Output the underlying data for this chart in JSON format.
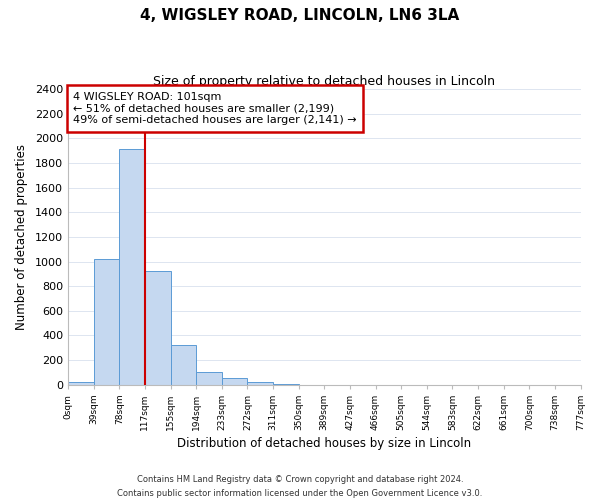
{
  "title": "4, WIGSLEY ROAD, LINCOLN, LN6 3LA",
  "subtitle": "Size of property relative to detached houses in Lincoln",
  "xlabel": "Distribution of detached houses by size in Lincoln",
  "ylabel": "Number of detached properties",
  "bar_values": [
    25,
    1020,
    1910,
    920,
    320,
    105,
    50,
    20,
    5,
    0,
    0,
    0,
    0,
    0,
    0,
    0,
    0,
    0,
    0,
    0
  ],
  "bin_labels": [
    "0sqm",
    "39sqm",
    "78sqm",
    "117sqm",
    "155sqm",
    "194sqm",
    "233sqm",
    "272sqm",
    "311sqm",
    "350sqm",
    "389sqm",
    "427sqm",
    "466sqm",
    "505sqm",
    "544sqm",
    "583sqm",
    "622sqm",
    "661sqm",
    "700sqm",
    "738sqm",
    "777sqm"
  ],
  "bar_color": "#c5d8f0",
  "bar_edge_color": "#5b9bd5",
  "vline_x": 3,
  "vline_color": "#cc0000",
  "ylim": [
    0,
    2400
  ],
  "yticks": [
    0,
    200,
    400,
    600,
    800,
    1000,
    1200,
    1400,
    1600,
    1800,
    2000,
    2200,
    2400
  ],
  "annotation_box_text": "4 WIGSLEY ROAD: 101sqm\n← 51% of detached houses are smaller (2,199)\n49% of semi-detached houses are larger (2,141) →",
  "footer_text": "Contains HM Land Registry data © Crown copyright and database right 2024.\nContains public sector information licensed under the Open Government Licence v3.0.",
  "background_color": "#ffffff",
  "grid_color": "#dde5f0"
}
